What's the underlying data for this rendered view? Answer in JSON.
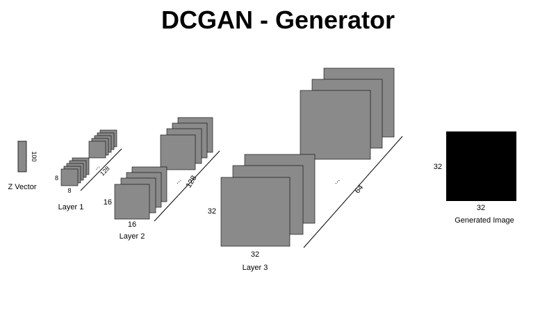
{
  "title": "DCGAN - Generator",
  "colors": {
    "map_fill": "#8a8a8a",
    "map_stroke": "#000000",
    "image_fill": "#000000"
  },
  "z_vector": {
    "caption": "Z Vector",
    "dim": "100"
  },
  "layer1": {
    "caption": "Layer 1",
    "height": "8",
    "width": "8",
    "channels": "128",
    "ellipsis": "..."
  },
  "layer2": {
    "caption": "Layer 2",
    "height": "16",
    "width": "16",
    "channels": "128",
    "ellipsis": "..."
  },
  "layer3": {
    "caption": "Layer 3",
    "height": "32",
    "width": "32",
    "channels": "64",
    "ellipsis": "..."
  },
  "output": {
    "caption": "Generated Image",
    "height": "32",
    "width": "32"
  }
}
